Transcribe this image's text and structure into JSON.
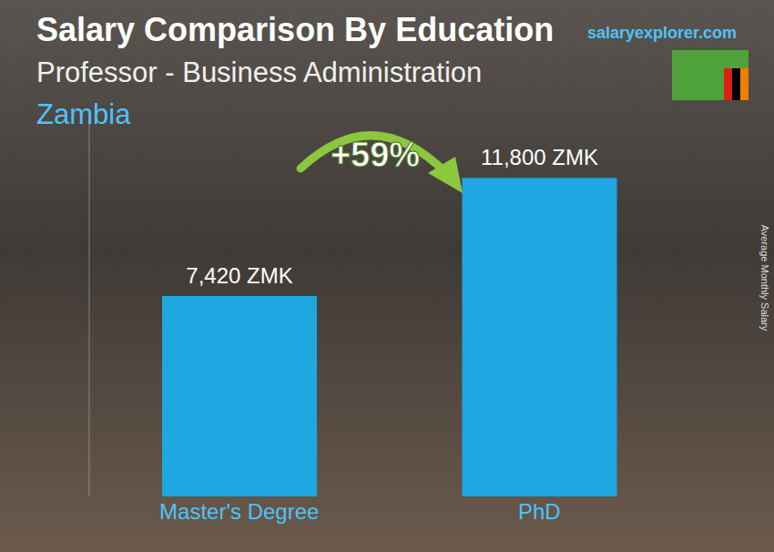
{
  "chart_data": {
    "type": "bar",
    "title": "Salary Comparison By Education",
    "subtitle": "Professor - Business Administration",
    "location": "Zambia",
    "watermark": "salaryexplorer.com",
    "annotation": "+59%",
    "y_label": "Average Monthly Salary",
    "categories": [
      "Master's Degree",
      "PhD"
    ],
    "values": [
      7420,
      11800
    ],
    "value_labels": [
      "7,420 ZMK",
      "11,800 ZMK"
    ],
    "color": "#1ea7e1",
    "ylim": [
      0,
      14000
    ],
    "data_labels": true,
    "tick_labels": "x",
    "grid": false
  }
}
